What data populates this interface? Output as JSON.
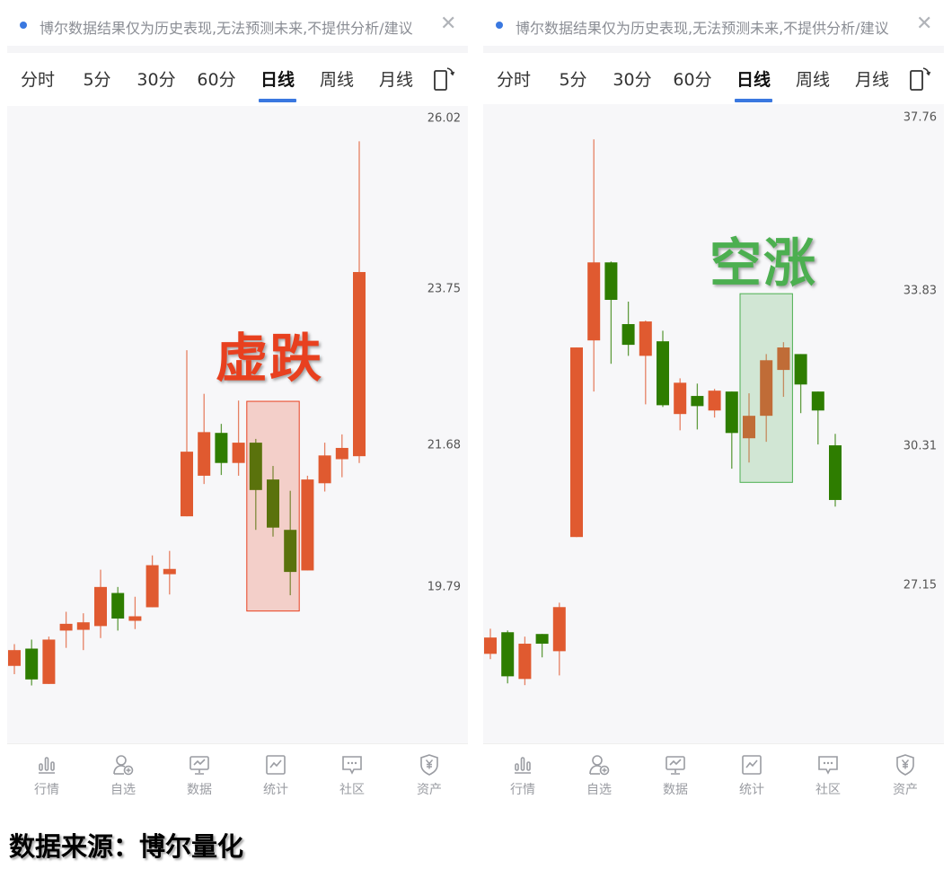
{
  "colors": {
    "up": "#e05a30",
    "down": "#2e7d00",
    "accent": "#3a78e0",
    "chart_bg": "#f7f7f9"
  },
  "panels": [
    {
      "banner": {
        "text": "博尔数据结果仅为历史表现,无法预测未来,不提供分析/建议",
        "close_icon": "close-icon"
      },
      "tabs": [
        {
          "label": "分时"
        },
        {
          "label": "5分"
        },
        {
          "label": "30分"
        },
        {
          "label": "60分"
        },
        {
          "label": "日线",
          "active": true
        },
        {
          "label": "周线"
        },
        {
          "label": "月线"
        }
      ],
      "rotate_icon": "screen-rotate-icon",
      "annotation": {
        "text": "虚跌",
        "color": "#e8401f"
      },
      "nav": [
        {
          "label": "行情",
          "icon": "bar-chart-icon"
        },
        {
          "label": "自选",
          "icon": "user-add-icon"
        },
        {
          "label": "数据",
          "icon": "monitor-chart-icon"
        },
        {
          "label": "统计",
          "icon": "line-chart-icon"
        },
        {
          "label": "社区",
          "icon": "chat-icon"
        },
        {
          "label": "资产",
          "icon": "yuan-shield-icon"
        }
      ]
    },
    {
      "banner": {
        "text": "博尔数据结果仅为历史表现,无法预测未来,不提供分析/建议",
        "close_icon": "close-icon"
      },
      "tabs": [
        {
          "label": "分时"
        },
        {
          "label": "5分"
        },
        {
          "label": "30分"
        },
        {
          "label": "60分"
        },
        {
          "label": "日线",
          "active": true
        },
        {
          "label": "周线"
        },
        {
          "label": "月线"
        }
      ],
      "rotate_icon": "screen-rotate-icon",
      "annotation": {
        "text": "空涨",
        "color": "#4caf50"
      },
      "nav": [
        {
          "label": "行情",
          "icon": "bar-chart-icon"
        },
        {
          "label": "自选",
          "icon": "user-add-icon"
        },
        {
          "label": "数据",
          "icon": "monitor-chart-icon"
        },
        {
          "label": "统计",
          "icon": "line-chart-icon"
        },
        {
          "label": "社区",
          "icon": "chat-icon"
        },
        {
          "label": "资产",
          "icon": "yuan-shield-icon"
        }
      ]
    }
  ],
  "caption": "数据来源：博尔量化",
  "chart_data": [
    {
      "type": "candlestick",
      "y_tick_labels": [
        "26.02",
        "23.75",
        "21.68",
        "19.79"
      ],
      "y_ticks": [
        26.02,
        23.75,
        21.68,
        19.79
      ],
      "ylim": [
        17.71,
        26.19
      ],
      "grid": false,
      "candles": [
        {
          "o": 18.74,
          "h": 19.03,
          "l": 18.63,
          "c": 18.95
        },
        {
          "o": 18.97,
          "h": 19.09,
          "l": 18.48,
          "c": 18.56
        },
        {
          "o": 18.5,
          "h": 19.13,
          "l": 18.5,
          "c": 19.09
        },
        {
          "o": 19.21,
          "h": 19.46,
          "l": 18.98,
          "c": 19.3
        },
        {
          "o": 19.22,
          "h": 19.44,
          "l": 18.95,
          "c": 19.32
        },
        {
          "o": 19.27,
          "h": 20.02,
          "l": 19.11,
          "c": 19.79
        },
        {
          "o": 19.71,
          "h": 19.79,
          "l": 19.21,
          "c": 19.37
        },
        {
          "o": 19.34,
          "h": 19.66,
          "l": 19.23,
          "c": 19.4
        },
        {
          "o": 19.52,
          "h": 20.21,
          "l": 19.52,
          "c": 20.08
        },
        {
          "o": 19.96,
          "h": 20.27,
          "l": 19.69,
          "c": 20.03
        },
        {
          "o": 20.73,
          "h": 22.94,
          "l": 20.73,
          "c": 21.59
        },
        {
          "o": 21.27,
          "h": 22.36,
          "l": 21.16,
          "c": 21.85
        },
        {
          "o": 21.84,
          "h": 21.96,
          "l": 21.28,
          "c": 21.44
        },
        {
          "o": 21.44,
          "h": 22.27,
          "l": 21.27,
          "c": 21.71
        },
        {
          "o": 21.71,
          "h": 21.76,
          "l": 20.55,
          "c": 21.08
        },
        {
          "o": 21.22,
          "h": 21.4,
          "l": 20.46,
          "c": 20.58
        },
        {
          "o": 20.55,
          "h": 21.07,
          "l": 19.68,
          "c": 19.99
        },
        {
          "o": 20.01,
          "h": 21.27,
          "l": 20.01,
          "c": 21.22
        },
        {
          "o": 21.17,
          "h": 21.71,
          "l": 21.06,
          "c": 21.54
        },
        {
          "o": 21.49,
          "h": 21.82,
          "l": 21.25,
          "c": 21.64
        },
        {
          "o": 21.53,
          "h": 25.72,
          "l": 21.44,
          "c": 23.98
        }
      ],
      "highlight": {
        "from_index": 14,
        "to_index": 16,
        "price_top": 22.26,
        "price_bottom": 19.47,
        "fill": "rgba(232,80,50,0.24)",
        "stroke": "#e8401f"
      }
    },
    {
      "type": "candlestick",
      "y_tick_labels": [
        "37.76",
        "33.83",
        "30.31",
        "27.15"
      ],
      "y_ticks": [
        37.76,
        33.83,
        30.31,
        27.15
      ],
      "ylim": [
        23.57,
        38.07
      ],
      "grid": false,
      "candles": [
        {
          "o": 25.6,
          "h": 26.17,
          "l": 25.48,
          "c": 25.97
        },
        {
          "o": 26.09,
          "h": 26.13,
          "l": 24.93,
          "c": 25.09
        },
        {
          "o": 25.03,
          "h": 25.99,
          "l": 24.89,
          "c": 25.83
        },
        {
          "o": 26.05,
          "h": 26.05,
          "l": 25.52,
          "c": 25.83
        },
        {
          "o": 25.66,
          "h": 26.76,
          "l": 25.11,
          "c": 26.66
        },
        {
          "o": 28.25,
          "h": 32.55,
          "l": 28.25,
          "c": 32.55
        },
        {
          "o": 32.71,
          "h": 37.27,
          "l": 31.55,
          "c": 34.48
        },
        {
          "o": 34.48,
          "h": 34.5,
          "l": 32.18,
          "c": 33.63
        },
        {
          "o": 33.08,
          "h": 33.59,
          "l": 32.36,
          "c": 32.61
        },
        {
          "o": 32.36,
          "h": 33.16,
          "l": 31.26,
          "c": 33.14
        },
        {
          "o": 32.69,
          "h": 32.93,
          "l": 31.2,
          "c": 31.24
        },
        {
          "o": 31.04,
          "h": 31.85,
          "l": 30.67,
          "c": 31.75
        },
        {
          "o": 31.45,
          "h": 31.73,
          "l": 30.69,
          "c": 31.22
        },
        {
          "o": 31.12,
          "h": 31.61,
          "l": 30.96,
          "c": 31.57
        },
        {
          "o": 31.55,
          "h": 31.55,
          "l": 29.8,
          "c": 30.61
        },
        {
          "o": 30.49,
          "h": 31.51,
          "l": 29.94,
          "c": 31.0
        },
        {
          "o": 31.0,
          "h": 32.4,
          "l": 30.41,
          "c": 32.26
        },
        {
          "o": 32.04,
          "h": 32.67,
          "l": 31.43,
          "c": 32.55
        },
        {
          "o": 32.4,
          "h": 32.4,
          "l": 31.06,
          "c": 31.71
        },
        {
          "o": 31.55,
          "h": 31.55,
          "l": 30.35,
          "c": 31.12
        },
        {
          "o": 30.33,
          "h": 30.59,
          "l": 28.94,
          "c": 29.09
        }
      ],
      "highlight": {
        "from_index": 15,
        "to_index": 17,
        "price_top": 33.77,
        "price_bottom": 29.49,
        "fill": "rgba(76,175,80,0.22)",
        "stroke": "#4caf50"
      }
    }
  ]
}
